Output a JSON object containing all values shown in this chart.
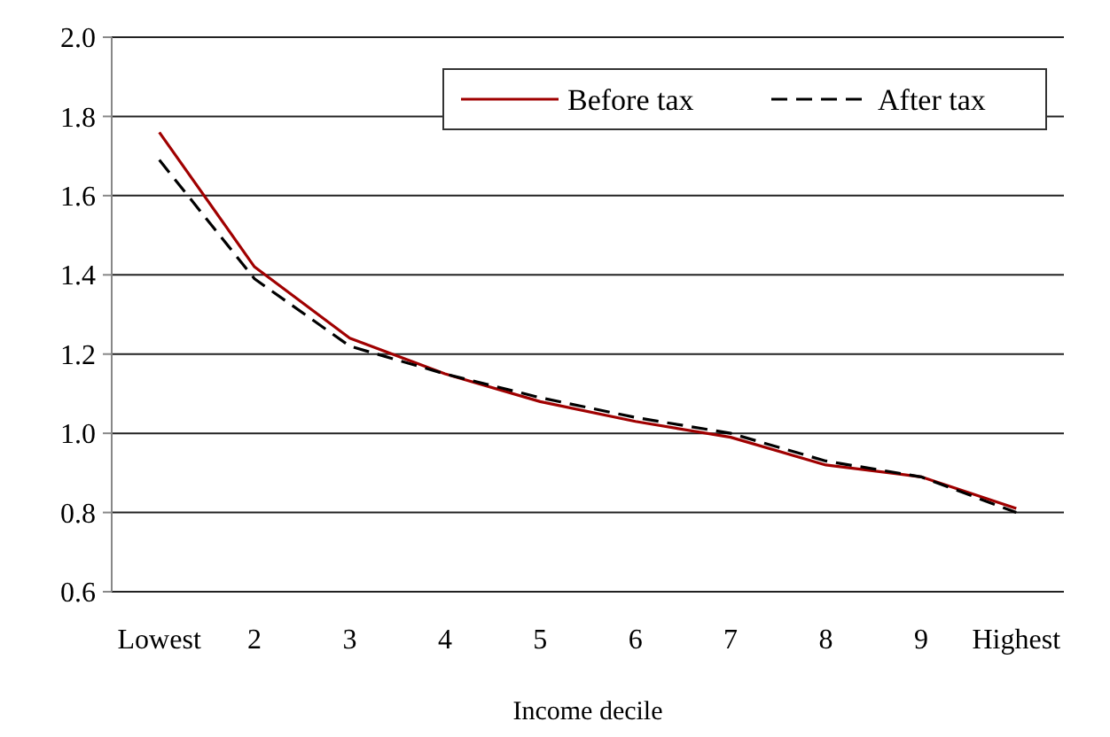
{
  "chart_data": {
    "type": "line",
    "xlabel": "Income decile",
    "categories": [
      "Lowest",
      "2",
      "3",
      "4",
      "5",
      "6",
      "7",
      "8",
      "9",
      "Highest"
    ],
    "series": [
      {
        "name": "Before tax",
        "color": "#a00000",
        "line_style": "solid",
        "values": [
          1.76,
          1.42,
          1.24,
          1.15,
          1.08,
          1.03,
          0.99,
          0.92,
          0.89,
          0.81
        ]
      },
      {
        "name": "After tax",
        "color": "#000000",
        "line_style": "dashed",
        "values": [
          1.69,
          1.39,
          1.22,
          1.15,
          1.09,
          1.04,
          1.0,
          0.93,
          0.89,
          0.8
        ]
      }
    ],
    "ylim": [
      0.6,
      2.0
    ],
    "yticks": [
      {
        "value": 0.6,
        "label": "0.6"
      },
      {
        "value": 0.8,
        "label": "0.8"
      },
      {
        "value": 1.0,
        "label": "1.0"
      },
      {
        "value": 1.2,
        "label": "1.2"
      },
      {
        "value": 1.4,
        "label": "1.4"
      },
      {
        "value": 1.6,
        "label": "1.6"
      },
      {
        "value": 1.8,
        "label": "1.8"
      },
      {
        "value": 2.0,
        "label": "2.0"
      }
    ],
    "grid": "y",
    "legend": "top right"
  }
}
